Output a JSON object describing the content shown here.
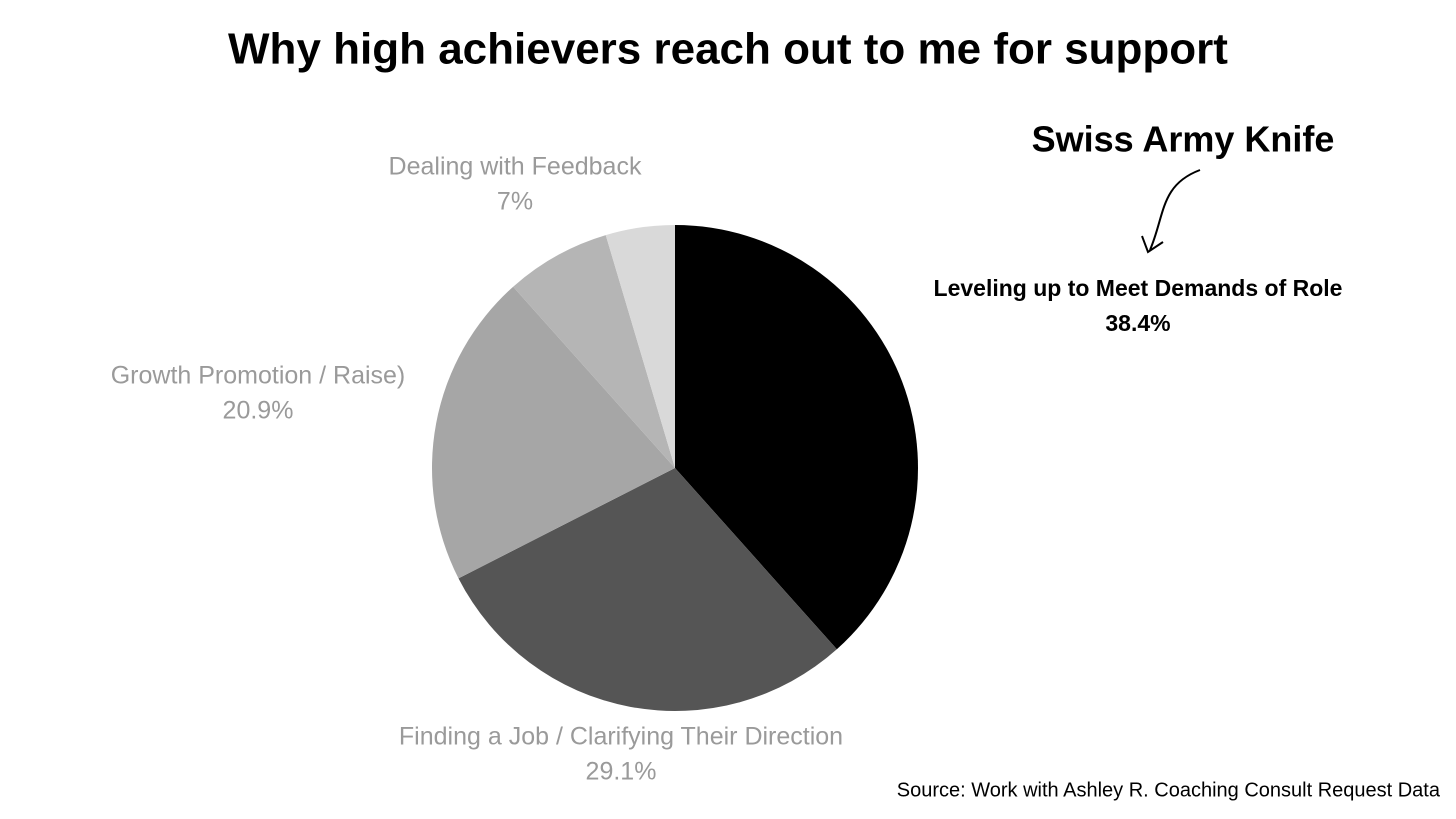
{
  "chart_data": {
    "type": "pie",
    "title": "Why high achievers reach out to me for support",
    "annotation": "Swiss Army Knife",
    "source": "Source: Work with Ashley R. Coaching Consult Request Data",
    "categories": [
      "Leveling up to Meet Demands of Role",
      "Finding a Job / Clarifying Their Direction",
      "Growth Promotion / Raise)",
      "Dealing with Feedback",
      null
    ],
    "values": [
      38.4,
      29.1,
      20.9,
      7,
      4.6
    ],
    "value_labels": [
      "38.4%",
      "29.1%",
      "20.9%",
      "7%",
      null
    ],
    "colors": [
      "#000000",
      "#555555",
      "#a6a6a6",
      "#b5b5b5",
      "#d9d9d9"
    ],
    "highlight": 0
  }
}
